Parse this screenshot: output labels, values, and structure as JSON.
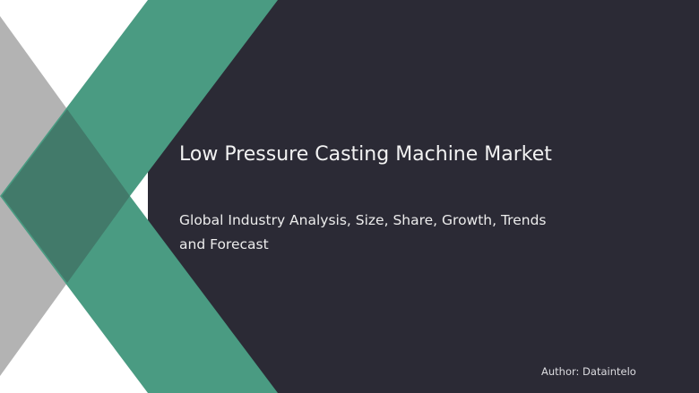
{
  "slide": {
    "title": "Low Pressure Casting Machine Market",
    "subtitle": "Global Industry Analysis, Size, Share, Growth, Trends and Forecast",
    "author": "Author: Dataintelo"
  },
  "colors": {
    "panel": "#2b2a35",
    "green": "#4a9b82",
    "gray": "#b3b3b3",
    "overlap": "#427a6a"
  }
}
